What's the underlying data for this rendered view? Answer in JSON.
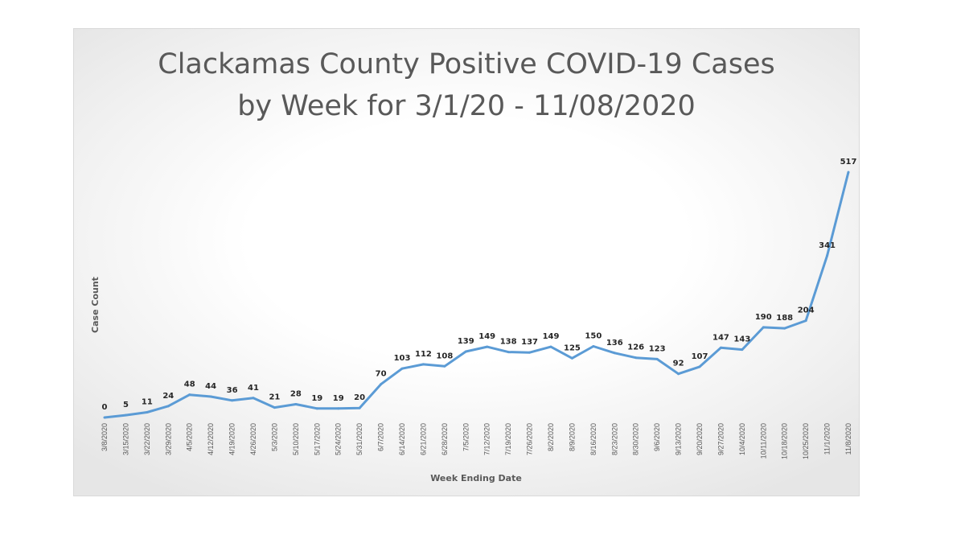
{
  "chart_data": {
    "type": "line",
    "title_lines": [
      "Clackamas County Positive COVID-19 Cases",
      "by Week for 3/1/20 - 11/08/2020"
    ],
    "xlabel": "Week Ending Date",
    "ylabel": "Case Count",
    "categories": [
      "3/8/2020",
      "3/15/2020",
      "3/22/2020",
      "3/29/2020",
      "4/5/2020",
      "4/12/2020",
      "4/19/2020",
      "4/26/2020",
      "5/3/2020",
      "5/10/2020",
      "5/17/2020",
      "5/24/2020",
      "5/31/2020",
      "6/7/2020",
      "6/14/2020",
      "6/21/2020",
      "6/28/2020",
      "7/5/2020",
      "7/12/2020",
      "7/19/2020",
      "7/26/2020",
      "8/2/2020",
      "8/9/2020",
      "8/16/2020",
      "8/23/2020",
      "8/30/2020",
      "9/6/2020",
      "9/13/2020",
      "9/20/2020",
      "9/27/2020",
      "10/4/2020",
      "10/11/2020",
      "10/18/2020",
      "10/25/2020",
      "11/1/2020",
      "11/8/2020"
    ],
    "series": [
      {
        "values": [
          0,
          5,
          11,
          24,
          48,
          44,
          36,
          41,
          21,
          28,
          19,
          19,
          20,
          70,
          103,
          112,
          108,
          139,
          149,
          138,
          137,
          149,
          125,
          150,
          136,
          126,
          123,
          92,
          107,
          147,
          143,
          190,
          188,
          204,
          341,
          517
        ]
      }
    ],
    "ylim": [
      0,
      600
    ],
    "grid": false,
    "legend": "none",
    "line_color": "#5b9bd5"
  }
}
